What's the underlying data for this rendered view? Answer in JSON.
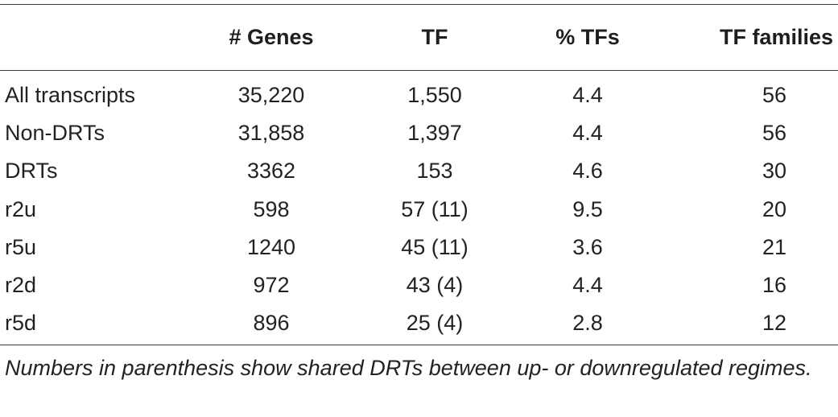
{
  "table": {
    "columns": [
      "",
      "# Genes",
      "TF",
      "% TFs",
      "TF families"
    ],
    "rows": [
      {
        "label": "All transcripts",
        "genes": "35,220",
        "tf": "1,550",
        "pct_tfs": "4.4",
        "tf_families": "56"
      },
      {
        "label": "Non-DRTs",
        "genes": "31,858",
        "tf": "1,397",
        "pct_tfs": "4.4",
        "tf_families": "56"
      },
      {
        "label": "DRTs",
        "genes": "3362",
        "tf": "153",
        "pct_tfs": "4.6",
        "tf_families": "30"
      },
      {
        "label": "r2u",
        "genes": "598",
        "tf": "57 (11)",
        "pct_tfs": "9.5",
        "tf_families": "20"
      },
      {
        "label": "r5u",
        "genes": "1240",
        "tf": "45 (11)",
        "pct_tfs": "3.6",
        "tf_families": "21"
      },
      {
        "label": "r2d",
        "genes": "972",
        "tf": "43 (4)",
        "pct_tfs": "4.4",
        "tf_families": "16"
      },
      {
        "label": "r5d",
        "genes": "896",
        "tf": "25 (4)",
        "pct_tfs": "2.8",
        "tf_families": "12"
      }
    ]
  },
  "footnote": "Numbers in parenthesis show shared DRTs between up- or downregulated regimes."
}
